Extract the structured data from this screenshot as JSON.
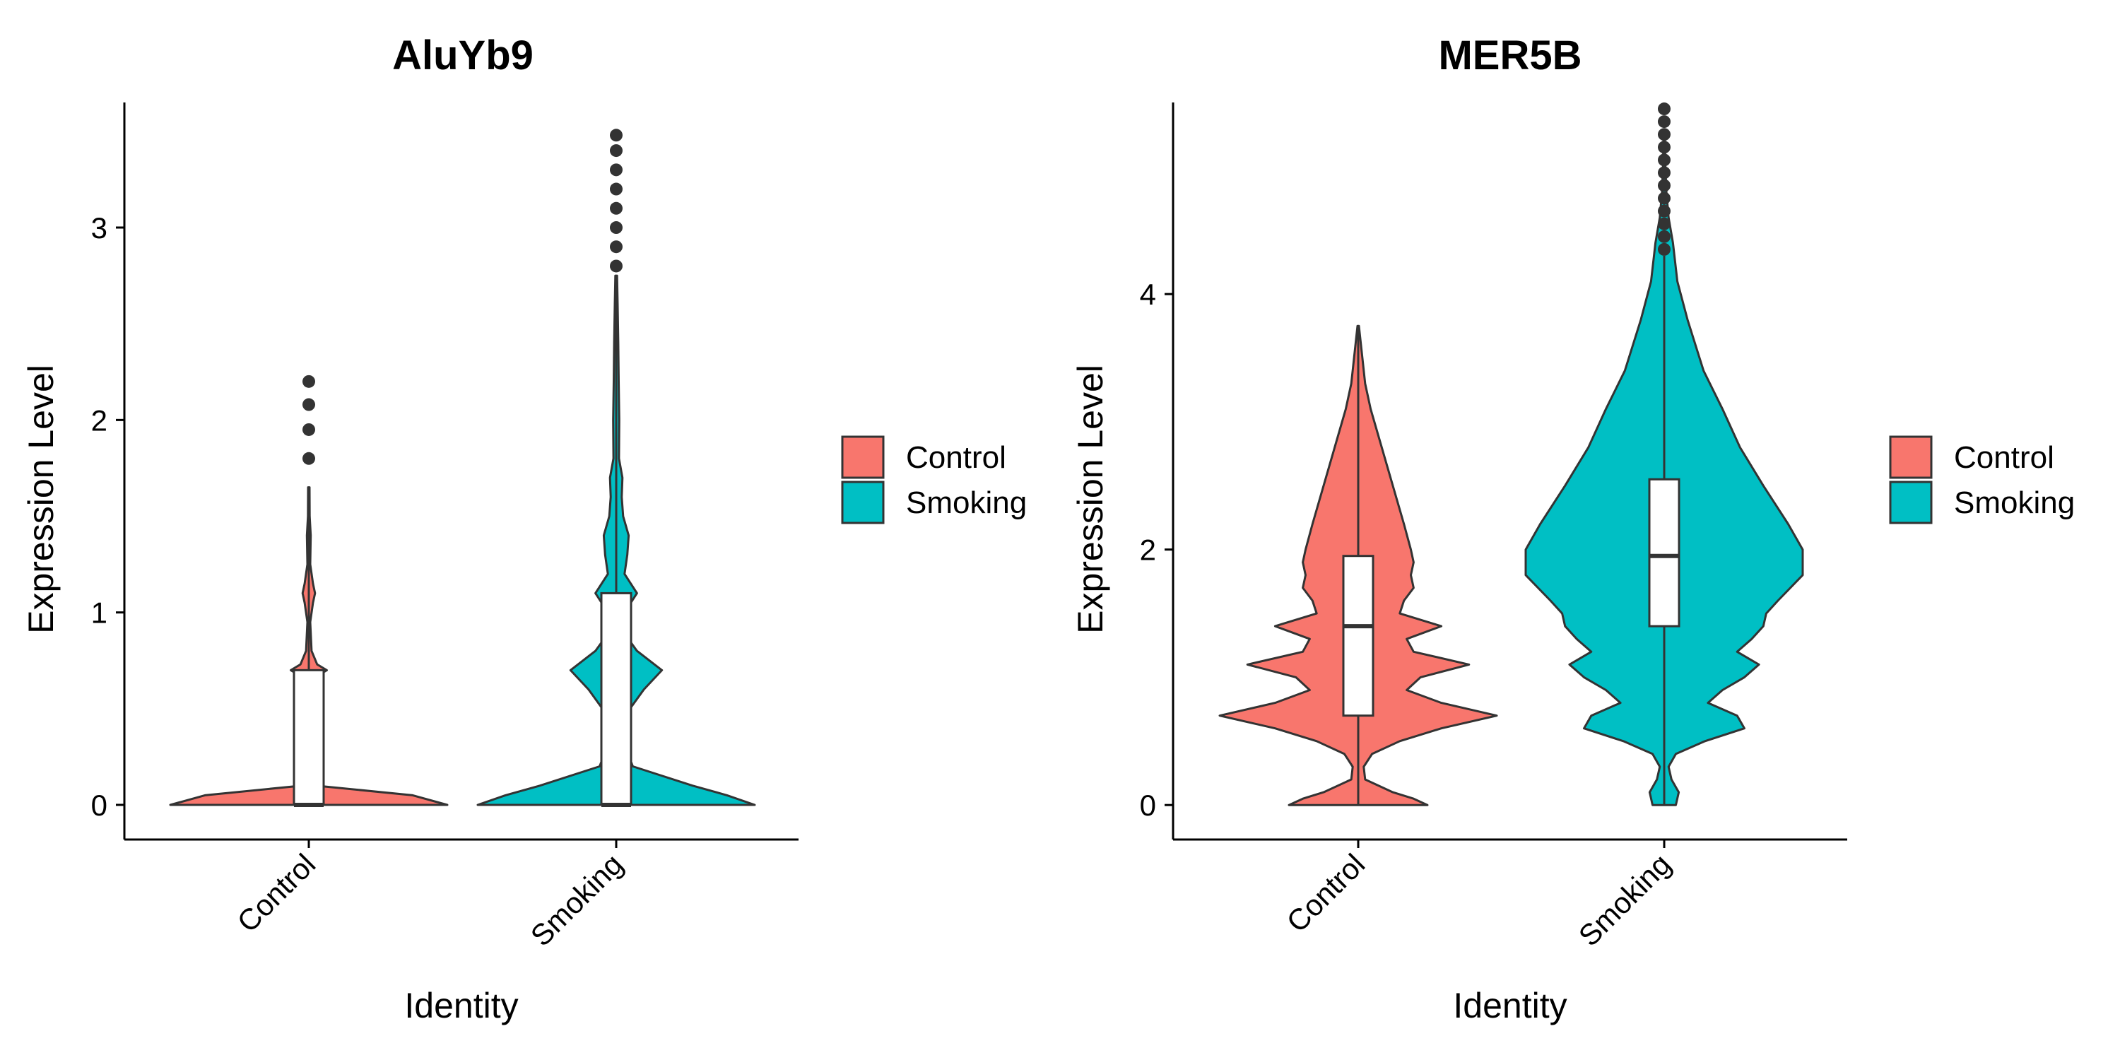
{
  "chart_data": [
    {
      "type": "violin",
      "title": "AluYb9",
      "xlabel": "Identity",
      "ylabel": "Expression Level",
      "categories": [
        "Control",
        "Smoking"
      ],
      "ylim": [
        -0.18,
        3.65
      ],
      "yticks": [
        0,
        1,
        2,
        3
      ],
      "legend": {
        "position": "right",
        "entries": [
          "Control",
          "Smoking"
        ]
      },
      "grid": false,
      "series": [
        {
          "name": "Control",
          "color": "#F8766D",
          "box": {
            "q1": 0,
            "median": 0,
            "q3": 0.7,
            "whisker_low": 0,
            "whisker_high": 1.65
          },
          "outliers": [
            1.8,
            1.95,
            2.08,
            2.2
          ],
          "density": [
            [
              0,
              1
            ],
            [
              0.05,
              0.75
            ],
            [
              0.1,
              0.05
            ],
            [
              0.2,
              0.012
            ],
            [
              0.4,
              0.012
            ],
            [
              0.6,
              0.016
            ],
            [
              0.67,
              0.06
            ],
            [
              0.7,
              0.13
            ],
            [
              0.73,
              0.06
            ],
            [
              0.8,
              0.02
            ],
            [
              0.95,
              0.01
            ],
            [
              1.05,
              0.03
            ],
            [
              1.1,
              0.045
            ],
            [
              1.15,
              0.03
            ],
            [
              1.25,
              0.01
            ],
            [
              1.4,
              0.014
            ],
            [
              1.5,
              0.006
            ],
            [
              1.65,
              0.005
            ]
          ]
        },
        {
          "name": "Smoking",
          "color": "#00BFC4",
          "box": {
            "q1": 0,
            "median": 0,
            "q3": 1.1,
            "whisker_low": 0,
            "whisker_high": 2.75
          },
          "outliers": [
            2.8,
            2.9,
            3.0,
            3.1,
            3.2,
            3.3,
            3.4,
            3.48
          ],
          "density": [
            [
              0,
              1
            ],
            [
              0.05,
              0.8
            ],
            [
              0.1,
              0.55
            ],
            [
              0.2,
              0.12
            ],
            [
              0.35,
              0.04
            ],
            [
              0.5,
              0.1
            ],
            [
              0.6,
              0.2
            ],
            [
              0.7,
              0.33
            ],
            [
              0.8,
              0.15
            ],
            [
              0.9,
              0.05
            ],
            [
              1.0,
              0.06
            ],
            [
              1.1,
              0.15
            ],
            [
              1.2,
              0.06
            ],
            [
              1.3,
              0.08
            ],
            [
              1.4,
              0.09
            ],
            [
              1.5,
              0.05
            ],
            [
              1.6,
              0.04
            ],
            [
              1.7,
              0.045
            ],
            [
              1.8,
              0.02
            ],
            [
              2.0,
              0.022
            ],
            [
              2.2,
              0.018
            ],
            [
              2.4,
              0.015
            ],
            [
              2.6,
              0.01
            ],
            [
              2.75,
              0.006
            ]
          ]
        }
      ]
    },
    {
      "type": "violin",
      "title": "MER5B",
      "xlabel": "Identity",
      "ylabel": "Expression Level",
      "categories": [
        "Control",
        "Smoking"
      ],
      "ylim": [
        -0.27,
        5.5
      ],
      "yticks": [
        0,
        2,
        4
      ],
      "legend": {
        "position": "right",
        "entries": [
          "Control",
          "Smoking"
        ]
      },
      "grid": false,
      "series": [
        {
          "name": "Control",
          "color": "#F8766D",
          "box": {
            "q1": 0.7,
            "median": 1.4,
            "q3": 1.95,
            "whisker_low": 0,
            "whisker_high": 3.75
          },
          "outliers": [],
          "density": [
            [
              0,
              0.5
            ],
            [
              0.05,
              0.4
            ],
            [
              0.1,
              0.25
            ],
            [
              0.2,
              0.05
            ],
            [
              0.3,
              0.04
            ],
            [
              0.4,
              0.1
            ],
            [
              0.5,
              0.3
            ],
            [
              0.6,
              0.6
            ],
            [
              0.7,
              1
            ],
            [
              0.8,
              0.6
            ],
            [
              0.9,
              0.35
            ],
            [
              1.0,
              0.45
            ],
            [
              1.1,
              0.8
            ],
            [
              1.2,
              0.4
            ],
            [
              1.3,
              0.35
            ],
            [
              1.4,
              0.6
            ],
            [
              1.5,
              0.3
            ],
            [
              1.6,
              0.33
            ],
            [
              1.7,
              0.4
            ],
            [
              1.8,
              0.38
            ],
            [
              1.9,
              0.4
            ],
            [
              2.0,
              0.38
            ],
            [
              2.2,
              0.33
            ],
            [
              2.5,
              0.25
            ],
            [
              2.8,
              0.17
            ],
            [
              3.1,
              0.09
            ],
            [
              3.3,
              0.05
            ],
            [
              3.5,
              0.03
            ],
            [
              3.75,
              0.005
            ]
          ]
        },
        {
          "name": "Smoking",
          "color": "#00BFC4",
          "box": {
            "q1": 1.4,
            "median": 1.95,
            "q3": 2.55,
            "whisker_low": 0,
            "whisker_high": 4.3
          },
          "outliers": [
            4.35,
            4.45,
            4.55,
            4.65,
            4.75,
            4.85,
            4.95,
            5.05,
            5.15,
            5.25,
            5.35,
            5.45
          ],
          "density": [
            [
              0,
              0.08
            ],
            [
              0.1,
              0.1
            ],
            [
              0.2,
              0.05
            ],
            [
              0.3,
              0.03
            ],
            [
              0.4,
              0.08
            ],
            [
              0.5,
              0.28
            ],
            [
              0.6,
              0.55
            ],
            [
              0.7,
              0.5
            ],
            [
              0.8,
              0.3
            ],
            [
              0.9,
              0.4
            ],
            [
              1.0,
              0.55
            ],
            [
              1.1,
              0.65
            ],
            [
              1.2,
              0.5
            ],
            [
              1.3,
              0.6
            ],
            [
              1.4,
              0.68
            ],
            [
              1.5,
              0.7
            ],
            [
              1.6,
              0.78
            ],
            [
              1.8,
              0.95
            ],
            [
              2.0,
              0.95
            ],
            [
              2.2,
              0.85
            ],
            [
              2.5,
              0.68
            ],
            [
              2.8,
              0.52
            ],
            [
              3.1,
              0.4
            ],
            [
              3.4,
              0.27
            ],
            [
              3.8,
              0.16
            ],
            [
              4.1,
              0.09
            ],
            [
              4.4,
              0.06
            ],
            [
              4.6,
              0.03
            ],
            [
              4.8,
              0.015
            ],
            [
              5.0,
              0.008
            ],
            [
              5.2,
              0.005
            ]
          ]
        }
      ]
    }
  ]
}
